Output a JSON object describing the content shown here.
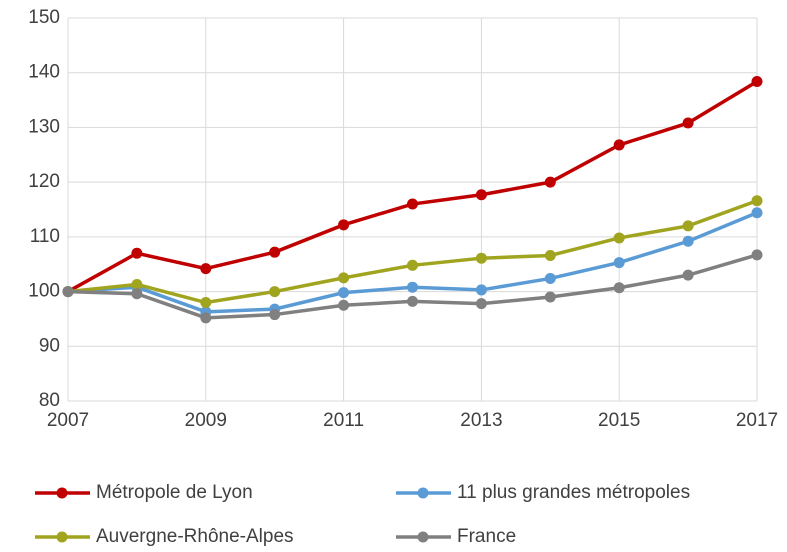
{
  "chart_data": {
    "type": "line",
    "x": [
      2007,
      2008,
      2009,
      2010,
      2011,
      2012,
      2013,
      2014,
      2015,
      2016,
      2017
    ],
    "xlim": [
      2007,
      2017
    ],
    "xticks": [
      2007,
      2009,
      2011,
      2013,
      2015,
      2017
    ],
    "ylim": [
      80,
      150
    ],
    "yticks": [
      80,
      90,
      100,
      110,
      120,
      130,
      140,
      150
    ],
    "grid": true,
    "legend": "bottom",
    "series": [
      {
        "name": "Métropole de Lyon",
        "color": "#c00000",
        "values": [
          100,
          107,
          104.2,
          107.2,
          112.2,
          116,
          117.7,
          120,
          126.8,
          130.8,
          138.4
        ]
      },
      {
        "name": "11 plus grandes métropoles",
        "color": "#5b9bd5",
        "values": [
          100,
          100.8,
          96.3,
          96.8,
          99.8,
          100.8,
          100.3,
          102.4,
          105.3,
          109.2,
          114.4
        ]
      },
      {
        "name": "Auvergne-Rhône-Alpes",
        "color": "#a0a41e",
        "values": [
          100,
          101.3,
          98,
          100,
          102.5,
          104.8,
          106.1,
          106.6,
          109.8,
          112,
          116.6
        ]
      },
      {
        "name": "France",
        "color": "#808080",
        "values": [
          100,
          99.6,
          95.2,
          95.8,
          97.5,
          98.2,
          97.8,
          99,
          100.7,
          103,
          106.7
        ]
      }
    ]
  }
}
